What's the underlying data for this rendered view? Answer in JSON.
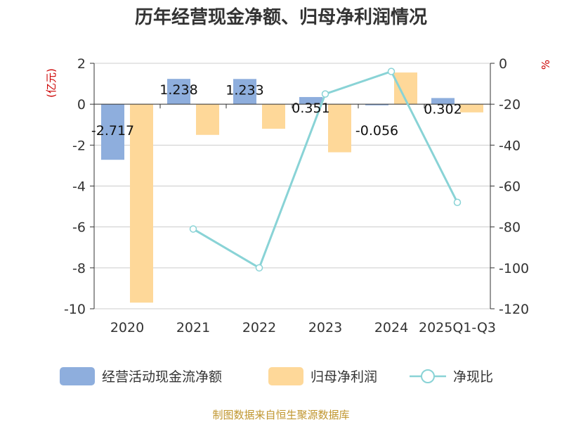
{
  "colors": {
    "cash_flow": "#8eaedd",
    "net_profit": "#fed899",
    "ratio": "#89d3d6",
    "unit_text": "#cc0000",
    "source_text": "#c0962f",
    "grid": "#cccccc",
    "axis": "#333333"
  },
  "chart_data": {
    "type": "bar",
    "title": "历年经营现金净额、归母净利润情况",
    "categories": [
      "2020",
      "2021",
      "2022",
      "2023",
      "2024",
      "2025Q1-Q3"
    ],
    "y_left": {
      "unit": "(亿元)",
      "range": [
        -10,
        2
      ],
      "ticks": [
        "2",
        "0",
        "-2",
        "-4",
        "-6",
        "-8",
        "-10"
      ]
    },
    "y_right": {
      "unit": "%",
      "range": [
        -120,
        0
      ],
      "ticks": [
        "0",
        "-20",
        "-40",
        "-60",
        "-80",
        "-100",
        "-120"
      ]
    },
    "series": [
      {
        "name": "经营活动现金流净额",
        "kind": "bar",
        "axis": "left",
        "values": [
          -2.717,
          1.238,
          1.233,
          0.351,
          -0.056,
          0.302
        ],
        "labels": [
          "-2.717",
          "1.238",
          "1.233",
          "0.351",
          "-0.056",
          "0.302"
        ]
      },
      {
        "name": "归母净利润",
        "kind": "bar",
        "axis": "left",
        "values": [
          -9.7,
          -1.5,
          -1.2,
          -2.35,
          1.55,
          -0.4
        ]
      },
      {
        "name": "净现比",
        "kind": "line",
        "axis": "right",
        "values": [
          null,
          -81,
          -100,
          -15,
          -4,
          -68
        ]
      }
    ],
    "grid": true,
    "legend": "bottom"
  },
  "source": "制图数据来自恒生聚源数据库"
}
